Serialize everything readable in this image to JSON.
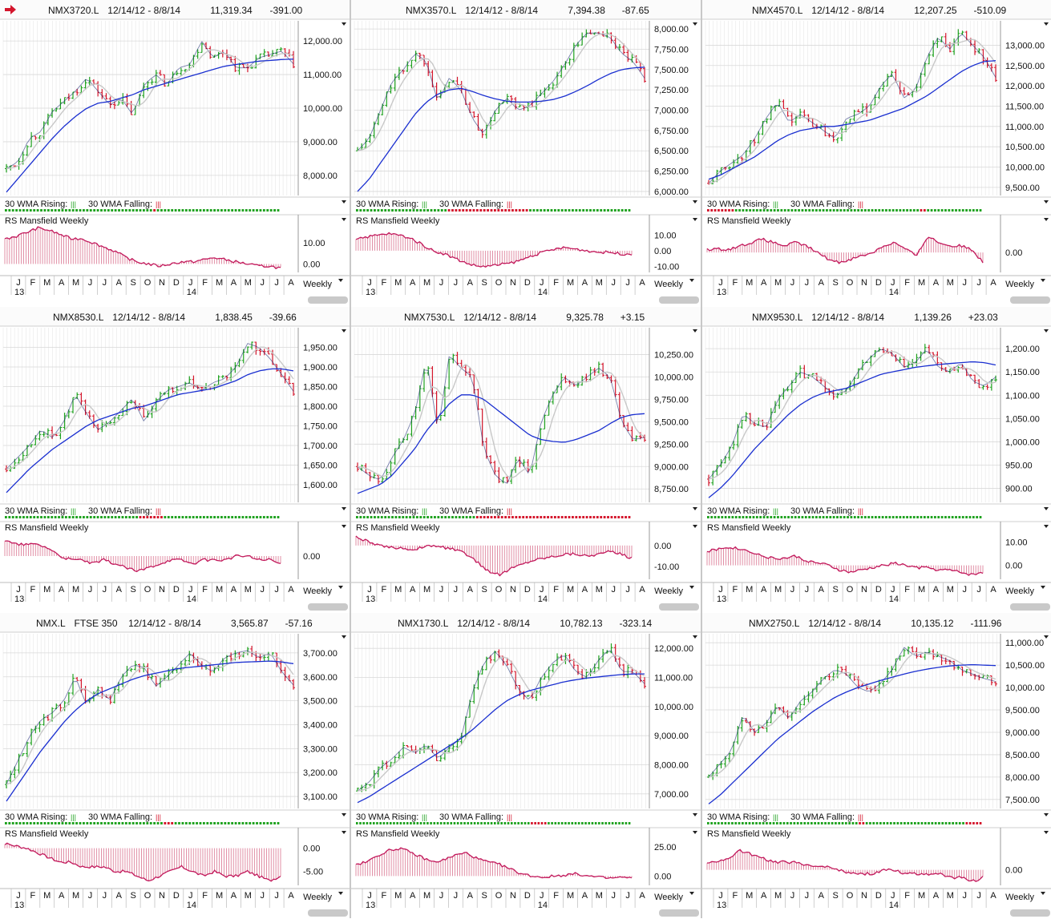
{
  "colors": {
    "up": "#1fa21f",
    "down": "#d4162c",
    "ma": "#1a2fd0",
    "ma10": "#c8c8c8",
    "rs": "#c2185b",
    "grid": "#e6e6e6"
  },
  "common": {
    "breadth_label_rising": "30 WMA Rising:",
    "breadth_label_falling": "30 WMA Falling:",
    "rs_title": "RS Mansfield Weekly",
    "period": "Weekly",
    "months": [
      "J",
      "F",
      "M",
      "A",
      "M",
      "J",
      "J",
      "A",
      "S",
      "O",
      "N",
      "D",
      "J",
      "F",
      "M",
      "A",
      "M",
      "J",
      "J",
      "A"
    ],
    "year_labels": [
      "13",
      "14"
    ],
    "flag_icon": "red-arrow-icon"
  },
  "chart_data": [
    {
      "type": "line",
      "symbol": "NMX3720.L",
      "extra": "",
      "range": "12/14/12 - 8/8/14",
      "last": "11,319.34",
      "change": "-391.00",
      "ylim": [
        7400,
        12600
      ],
      "yticks": [
        "12,000.00",
        "11,000.00",
        "10,000.00",
        "9,000.00",
        "8,000.00"
      ],
      "ytick_values": [
        12000,
        11000,
        10000,
        9000,
        8000
      ],
      "series": [
        {
          "values": [
            8200,
            8400,
            9100,
            9300,
            9900,
            10200,
            10500,
            10900,
            10500,
            10100,
            10300,
            9800,
            10700,
            11000,
            10700,
            11200,
            11300,
            12000,
            11500,
            11700,
            11200,
            11200,
            11500,
            11600,
            11700,
            11319
          ]
        }
      ],
      "ma": [
        7500,
        7900,
        8300,
        8700,
        9100,
        9450,
        9750,
        10000,
        10150,
        10200,
        10300,
        10400,
        10550,
        10650,
        10750,
        10850,
        10950,
        11050,
        11150,
        11250,
        11300,
        11350,
        11400,
        11420,
        11450,
        11460
      ],
      "rs_ylim": [
        -4,
        18
      ],
      "rs_ticks": [
        "10.00",
        "0.00"
      ],
      "rs_tick_values": [
        10,
        0
      ],
      "rs": [
        12,
        13,
        15,
        17,
        16,
        14,
        12,
        12,
        10,
        8,
        6,
        3,
        1,
        0,
        -1,
        0,
        1,
        1,
        2,
        3,
        2,
        1,
        0,
        -1,
        -1,
        -2
      ],
      "breadth": "ggggggggggggggggggggggggggggggggggggggggggrggggggggggggggggggggggggggggggggggg"
    },
    {
      "type": "line",
      "symbol": "NMX3570.L",
      "extra": "",
      "range": "12/14/12 - 8/8/14",
      "last": "7,394.38",
      "change": "-87.65",
      "ylim": [
        5950,
        8100
      ],
      "yticks": [
        "8,000.00",
        "7,750.00",
        "7,500.00",
        "7,250.00",
        "7,000.00",
        "6,750.00",
        "6,500.00",
        "6,250.00",
        "6,000.00"
      ],
      "ytick_values": [
        8000,
        7750,
        7500,
        7250,
        7000,
        6750,
        6500,
        6250,
        6000
      ],
      "series": [
        {
          "values": [
            6500,
            6650,
            7000,
            7350,
            7500,
            7700,
            7600,
            7100,
            7400,
            7250,
            6900,
            6700,
            7000,
            7150,
            7000,
            7050,
            7200,
            7350,
            7550,
            7800,
            7950,
            7950,
            7900,
            7700,
            7600,
            7394
          ]
        }
      ],
      "ma": [
        6000,
        6150,
        6350,
        6550,
        6750,
        6950,
        7100,
        7200,
        7250,
        7270,
        7230,
        7180,
        7140,
        7110,
        7100,
        7100,
        7110,
        7130,
        7170,
        7230,
        7300,
        7380,
        7450,
        7500,
        7520,
        7530
      ],
      "rs_ylim": [
        -14,
        16
      ],
      "rs_ticks": [
        "10.00",
        "0.00",
        "-10.00"
      ],
      "rs_tick_values": [
        10,
        0,
        -10
      ],
      "rs": [
        8,
        9,
        10,
        11,
        10,
        8,
        4,
        0,
        -2,
        -5,
        -8,
        -10,
        -10,
        -9,
        -8,
        -6,
        -3,
        -1,
        1,
        2,
        1,
        0,
        -1,
        -1,
        -2,
        -2
      ],
      "breadth": "ggggggggggggggggggggggggggrrrrrrrrrrrrrrrrrrrrrrrggggggggggggggggggggggggggggg"
    },
    {
      "type": "line",
      "symbol": "NMX4570.L",
      "extra": "",
      "range": "12/14/12 - 8/8/14",
      "last": "12,207.25",
      "change": "-510.09",
      "ylim": [
        9300,
        13600
      ],
      "yticks": [
        "13,000.00",
        "12,500.00",
        "12,000.00",
        "11,500.00",
        "11,000.00",
        "10,500.00",
        "10,000.00",
        "9,500.00"
      ],
      "ytick_values": [
        13000,
        12500,
        12000,
        11500,
        11000,
        10500,
        10000,
        9500
      ],
      "series": [
        {
          "values": [
            9600,
            9900,
            10100,
            10300,
            10700,
            11200,
            11600,
            11100,
            11300,
            11100,
            10900,
            10700,
            11200,
            11300,
            11500,
            12000,
            12300,
            11700,
            11900,
            12700,
            13200,
            12900,
            13300,
            13000,
            12700,
            12207
          ]
        }
      ],
      "ma": [
        9700,
        9800,
        9950,
        10100,
        10250,
        10450,
        10650,
        10800,
        10900,
        10950,
        11000,
        11000,
        11050,
        11100,
        11150,
        11250,
        11350,
        11450,
        11600,
        11750,
        11950,
        12150,
        12350,
        12500,
        12600,
        12620
      ],
      "rs_ylim": [
        -6,
        8
      ],
      "rs_ticks": [
        "0.00"
      ],
      "rs_tick_values": [
        0
      ],
      "rs": [
        1,
        1,
        1,
        2,
        3,
        4,
        3,
        2,
        3,
        2,
        0,
        -2,
        -3,
        -2,
        -1,
        0,
        2,
        3,
        1,
        -1,
        5,
        3,
        2,
        2,
        1,
        -3
      ],
      "breadth": "rrrrrrrrgggggggggggggggggggggggggggggggggggggggggggggggggggggrrgggggggggggggggg"
    },
    {
      "type": "line",
      "symbol": "NMX8530.L",
      "extra": "",
      "range": "12/14/12 - 8/8/14",
      "last": "1,838.45",
      "change": "-39.66",
      "ylim": [
        1555,
        2000
      ],
      "yticks": [
        "1,950.00",
        "1,900.00",
        "1,850.00",
        "1,800.00",
        "1,750.00",
        "1,700.00",
        "1,650.00",
        "1,600.00"
      ],
      "ytick_values": [
        1950,
        1900,
        1850,
        1800,
        1750,
        1700,
        1650,
        1600
      ],
      "series": [
        {
          "values": [
            1640,
            1670,
            1700,
            1740,
            1720,
            1760,
            1830,
            1780,
            1740,
            1760,
            1790,
            1820,
            1760,
            1810,
            1840,
            1850,
            1860,
            1840,
            1860,
            1870,
            1900,
            1960,
            1950,
            1920,
            1880,
            1838
          ]
        }
      ],
      "ma": [
        1580,
        1610,
        1640,
        1665,
        1690,
        1710,
        1730,
        1750,
        1765,
        1775,
        1785,
        1795,
        1800,
        1810,
        1820,
        1830,
        1835,
        1840,
        1845,
        1855,
        1865,
        1880,
        1890,
        1895,
        1895,
        1890
      ],
      "rs_ylim": [
        -6,
        6
      ],
      "rs_ticks": [
        "0.00"
      ],
      "rs_tick_values": [
        0
      ],
      "rs": [
        4,
        3,
        3,
        3,
        2,
        0,
        -1,
        -1,
        -2,
        -1,
        -2,
        -3,
        -4,
        -3,
        -2,
        -1,
        -1,
        -2,
        -1,
        -1,
        -1,
        0,
        0,
        -1,
        -1,
        -2
      ],
      "breadth": "ggggggggggggggggggggggggggggggggggggggrrrrrrrggggggggggggggggggggggggggggggggg"
    },
    {
      "type": "line",
      "symbol": "NMX7530.L",
      "extra": "",
      "range": "12/14/12 - 8/8/14",
      "last": "9,325.78",
      "change": "+3.15",
      "ylim": [
        8600,
        10550
      ],
      "yticks": [
        "10,250.00",
        "10,000.00",
        "9,750.00",
        "9,500.00",
        "9,250.00",
        "9,000.00",
        "8,750.00"
      ],
      "ytick_values": [
        10250,
        10000,
        9750,
        9500,
        9250,
        9000,
        8750
      ],
      "series": [
        {
          "values": [
            9000,
            8900,
            8850,
            9100,
            9300,
            9600,
            10200,
            9400,
            10250,
            10100,
            10000,
            9200,
            8900,
            8800,
            9100,
            8900,
            9500,
            9800,
            10000,
            9900,
            10000,
            10100,
            10000,
            9500,
            9300,
            9326
          ]
        }
      ],
      "ma": [
        8700,
        8750,
        8800,
        8900,
        9050,
        9200,
        9400,
        9550,
        9700,
        9800,
        9800,
        9750,
        9650,
        9550,
        9450,
        9350,
        9300,
        9280,
        9270,
        9300,
        9350,
        9400,
        9480,
        9550,
        9580,
        9590
      ],
      "rs_ylim": [
        -16,
        6
      ],
      "rs_ticks": [
        "0.00",
        "-10.00"
      ],
      "rs_tick_values": [
        0,
        -10
      ],
      "rs": [
        4,
        2,
        0,
        -1,
        -1,
        -2,
        -1,
        0,
        -1,
        -2,
        -4,
        -8,
        -12,
        -14,
        -11,
        -9,
        -7,
        -6,
        -5,
        -4,
        -4,
        -5,
        -4,
        -3,
        -4,
        -6
      ],
      "breadth": "ggggggggggggggggggggggggggggggggggrrrrrrrrrrrrrrrrrrrrrrrrrrrrrrrrrrrrrrrrrrrr"
    },
    {
      "type": "line",
      "symbol": "NMX9530.L",
      "extra": "",
      "range": "12/14/12 - 8/8/14",
      "last": "1,139.26",
      "change": "+23.03",
      "ylim": [
        870,
        1245
      ],
      "yticks": [
        "1,200.00",
        "1,150.00",
        "1,100.00",
        "1,050.00",
        "1,000.00",
        "950.00",
        "900.00"
      ],
      "ytick_values": [
        1200,
        1150,
        1100,
        1050,
        1000,
        950,
        900
      ],
      "series": [
        {
          "values": [
            920,
            950,
            990,
            1060,
            1040,
            1030,
            1090,
            1120,
            1150,
            1140,
            1120,
            1100,
            1110,
            1150,
            1180,
            1200,
            1190,
            1160,
            1170,
            1200,
            1160,
            1150,
            1170,
            1130,
            1120,
            1139
          ]
        }
      ],
      "ma": [
        880,
        900,
        925,
        955,
        985,
        1010,
        1035,
        1060,
        1080,
        1095,
        1105,
        1110,
        1115,
        1125,
        1135,
        1145,
        1150,
        1155,
        1160,
        1163,
        1166,
        1168,
        1170,
        1172,
        1170,
        1165
      ],
      "rs_ylim": [
        -6,
        14
      ],
      "rs_ticks": [
        "10.00",
        "0.00"
      ],
      "rs_tick_values": [
        10,
        0
      ],
      "rs": [
        6,
        7,
        8,
        7,
        6,
        4,
        3,
        3,
        4,
        2,
        1,
        0,
        -2,
        -3,
        -2,
        -1,
        0,
        1,
        0,
        -1,
        -1,
        -2,
        -2,
        -3,
        -4,
        -3
      ],
      "breadth": "ggggggggggggggggggggggggggggggggggggggggggggggggggggggggggggggggggggggggggggggg"
    },
    {
      "type": "line",
      "symbol": "NMX.L",
      "extra": "FTSE 350",
      "range": "12/14/12 - 8/8/14",
      "last": "3,565.87",
      "change": "-57.16",
      "ylim": [
        3050,
        3780
      ],
      "yticks": [
        "3,700.00",
        "3,600.00",
        "3,500.00",
        "3,400.00",
        "3,300.00",
        "3,200.00",
        "3,100.00"
      ],
      "ytick_values": [
        3700,
        3600,
        3500,
        3400,
        3300,
        3200,
        3100
      ],
      "series": [
        {
          "values": [
            3150,
            3250,
            3350,
            3420,
            3450,
            3500,
            3600,
            3480,
            3550,
            3500,
            3600,
            3650,
            3640,
            3560,
            3600,
            3650,
            3700,
            3650,
            3620,
            3680,
            3700,
            3710,
            3680,
            3700,
            3620,
            3566
          ]
        }
      ],
      "ma": [
        3080,
        3150,
        3220,
        3290,
        3350,
        3410,
        3460,
        3500,
        3530,
        3550,
        3570,
        3590,
        3605,
        3615,
        3625,
        3635,
        3640,
        3645,
        3650,
        3655,
        3660,
        3662,
        3664,
        3666,
        3662,
        3655
      ],
      "rs_ylim": [
        -8,
        2
      ],
      "rs_ticks": [
        "0.00",
        "-5.00"
      ],
      "rs_tick_values": [
        0,
        -5
      ],
      "rs": [
        1,
        0.5,
        0,
        -1,
        -2,
        -3,
        -3,
        -4,
        -4,
        -4,
        -5,
        -5,
        -6,
        -7,
        -6,
        -5,
        -4,
        -5,
        -6,
        -5,
        -6,
        -6,
        -5,
        -6,
        -7,
        -6
      ],
      "breadth": "gggggggggggggggggggggggggggggggggggggggggggggrrrgggggggggggggggggggggggggggggg"
    },
    {
      "type": "line",
      "symbol": "NMX1730.L",
      "extra": "",
      "range": "12/14/12 - 8/8/14",
      "last": "10,782.13",
      "change": "-323.14",
      "ylim": [
        6500,
        12500
      ],
      "yticks": [
        "12,000.00",
        "11,000.00",
        "10,000.00",
        "9,000.00",
        "8,000.00",
        "7,000.00"
      ],
      "ytick_values": [
        12000,
        11000,
        10000,
        9000,
        8000,
        7000
      ],
      "series": [
        {
          "values": [
            7100,
            7400,
            7900,
            8200,
            8600,
            8400,
            8700,
            8200,
            8600,
            8900,
            10500,
            11500,
            11900,
            11400,
            10600,
            10200,
            11000,
            11500,
            11800,
            11200,
            11000,
            11600,
            12000,
            11200,
            11200,
            10782
          ]
        }
      ],
      "ma": [
        6700,
        6900,
        7150,
        7400,
        7650,
        7900,
        8150,
        8400,
        8650,
        8900,
        9200,
        9550,
        9900,
        10200,
        10400,
        10550,
        10650,
        10750,
        10850,
        10920,
        10980,
        11020,
        11060,
        11100,
        11120,
        11120
      ],
      "rs_ylim": [
        -8,
        32
      ],
      "rs_ticks": [
        "25.00",
        "0.00"
      ],
      "rs_tick_values": [
        25,
        0
      ],
      "rs": [
        10,
        12,
        18,
        22,
        24,
        20,
        16,
        12,
        14,
        18,
        20,
        15,
        12,
        10,
        6,
        2,
        0,
        -1,
        0,
        1,
        2,
        0,
        -1,
        -2,
        -1,
        -2
      ],
      "breadth": "ggggggggggggggggggggggggggggggggggggggggggggggggggggrrrrrggggggggggggggggggggggggg"
    },
    {
      "type": "line",
      "symbol": "NMX2750.L",
      "extra": "",
      "range": "12/14/12 - 8/8/14",
      "last": "10,135.12",
      "change": "-111.96",
      "ylim": [
        7300,
        11200
      ],
      "yticks": [
        "11,000.00",
        "10,500.00",
        "10,000.00",
        "9,500.00",
        "9,000.00",
        "8,500.00",
        "8,000.00",
        "7,500.00"
      ],
      "ytick_values": [
        11000,
        10500,
        10000,
        9500,
        9000,
        8500,
        8000,
        7500
      ],
      "series": [
        {
          "values": [
            8000,
            8300,
            8600,
            9400,
            9000,
            9200,
            9600,
            9300,
            9700,
            9900,
            10200,
            10400,
            10300,
            10000,
            9900,
            10100,
            10400,
            10900,
            10700,
            10800,
            10700,
            10600,
            10400,
            10300,
            10200,
            10135
          ]
        }
      ],
      "ma": [
        7400,
        7600,
        7850,
        8100,
        8350,
        8600,
        8850,
        9050,
        9250,
        9450,
        9620,
        9780,
        9900,
        10000,
        10080,
        10160,
        10230,
        10300,
        10360,
        10410,
        10450,
        10480,
        10500,
        10510,
        10500,
        10490
      ],
      "rs_ylim": [
        -4,
        8
      ],
      "rs_ticks": [
        "0.00"
      ],
      "rs_tick_values": [
        0
      ],
      "rs": [
        2,
        2,
        3,
        5,
        4,
        3,
        2,
        2,
        2,
        1,
        1,
        1,
        0,
        -1,
        -1,
        -1,
        0,
        0,
        -1,
        -1,
        -1,
        -1,
        -2,
        -2,
        -3,
        -2
      ],
      "breadth": "ggggggggggggggggggggggggggggggggggggggggggggrrgggggggggggggggggggggggggggggrrrrr"
    }
  ]
}
